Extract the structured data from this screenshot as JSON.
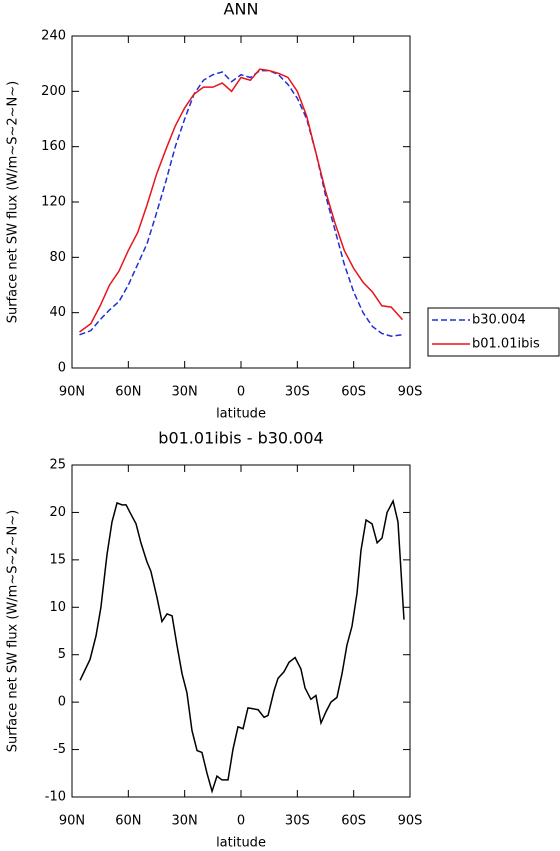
{
  "chart_data": [
    {
      "type": "line",
      "title": "ANN",
      "xlabel": "latitude",
      "ylabel": "Surface net SW flux (W/m~S~2~N~)",
      "xlim": [
        90,
        -90
      ],
      "xticks": [
        {
          "value": 90,
          "label": "90N"
        },
        {
          "value": 60,
          "label": "60N"
        },
        {
          "value": 30,
          "label": "30N"
        },
        0,
        {
          "value": -30,
          "label": "30S"
        },
        {
          "value": -60,
          "label": "60S"
        },
        {
          "value": -90,
          "label": "90S"
        }
      ],
      "ylim": [
        0,
        240
      ],
      "yticks": [
        0,
        40,
        80,
        120,
        160,
        200,
        240
      ],
      "legend": "right",
      "x": [
        86,
        80,
        75,
        70,
        65,
        60,
        55,
        50,
        45,
        40,
        35,
        30,
        25,
        20,
        15,
        10,
        5,
        0,
        -5,
        -10,
        -15,
        -20,
        -25,
        -30,
        -35,
        -40,
        -45,
        -50,
        -55,
        -60,
        -65,
        -70,
        -75,
        -80,
        -86
      ],
      "series": [
        {
          "name": "b30.004",
          "color": "#1f2fd6",
          "line_style": "dashed",
          "values": [
            24,
            27,
            35,
            42,
            48,
            60,
            75,
            90,
            112,
            135,
            160,
            180,
            198,
            208,
            212,
            214,
            207,
            212,
            210,
            215,
            215,
            212,
            205,
            195,
            180,
            155,
            125,
            100,
            75,
            55,
            40,
            30,
            25,
            23,
            24
          ]
        },
        {
          "name": "b01.01ibis",
          "color": "#e8141c",
          "line_style": "solid",
          "values": [
            26,
            32,
            45,
            60,
            70,
            85,
            98,
            118,
            140,
            158,
            175,
            188,
            198,
            203,
            203,
            206,
            200,
            210,
            208,
            216,
            215,
            213,
            210,
            200,
            182,
            155,
            128,
            105,
            85,
            72,
            62,
            55,
            45,
            44,
            35
          ]
        }
      ]
    },
    {
      "type": "line",
      "title": "b01.01ibis - b30.004",
      "xlabel": "latitude",
      "ylabel": "Surface net SW flux (W/m~S~2~N~)",
      "xlim": [
        90,
        -90
      ],
      "xticks": [
        {
          "value": 90,
          "label": "90N"
        },
        {
          "value": 60,
          "label": "60N"
        },
        {
          "value": 30,
          "label": "30N"
        },
        0,
        {
          "value": -30,
          "label": "30S"
        },
        {
          "value": -60,
          "label": "60S"
        },
        {
          "value": -90,
          "label": "90S"
        }
      ],
      "ylim": [
        -10,
        25
      ],
      "yticks": [
        -10,
        -5,
        0,
        5,
        10,
        15,
        20,
        25
      ],
      "x": [
        85.7,
        80.4,
        77.2,
        74.6,
        71.4,
        68.7,
        66,
        63.4,
        61.2,
        58.6,
        55.9,
        53.3,
        50.1,
        48,
        44.7,
        42.1,
        39.4,
        36.7,
        34.1,
        31.4,
        28.8,
        26.1,
        23.4,
        20.8,
        18.1,
        15.4,
        12.8,
        10.1,
        6.9,
        4.3,
        1.6,
        -1.1,
        -3.7,
        -6.4,
        -9.1,
        -12.3,
        -14.4,
        -17.6,
        -19.7,
        -22.9,
        -25.6,
        -28.8,
        -31.9,
        -34.1,
        -37.2,
        -39.9,
        -42.6,
        -45.3,
        -47.9,
        -51.1,
        -53.8,
        -56.4,
        -59.1,
        -61.8,
        -63.9,
        -66.6,
        -69.8,
        -72.5,
        -75.1,
        -77.8,
        -81,
        -83.6,
        -86.8
      ],
      "series": [
        {
          "color": "#000000",
          "line_style": "solid",
          "values": [
            2.3,
            4.5,
            7,
            10,
            15.5,
            19,
            21,
            20.8,
            20.8,
            19.8,
            18.8,
            16.8,
            14.8,
            13.8,
            11,
            8.5,
            9.3,
            9.1,
            6,
            3,
            1,
            -3,
            -5.1,
            -5.3,
            -7.5,
            -9.4,
            -7.8,
            -8.2,
            -8.2,
            -5,
            -2.6,
            -2.8,
            -0.6,
            -0.7,
            -0.8,
            -1.6,
            -1.4,
            1.2,
            2.5,
            3.2,
            4.2,
            4.7,
            3.5,
            1.5,
            0.3,
            0.7,
            -2.2,
            -1,
            0,
            0.5,
            3,
            6,
            8,
            11.5,
            16,
            19.2,
            18.8,
            16.8,
            17.3,
            20,
            21.2,
            19,
            8.7
          ]
        }
      ]
    }
  ]
}
